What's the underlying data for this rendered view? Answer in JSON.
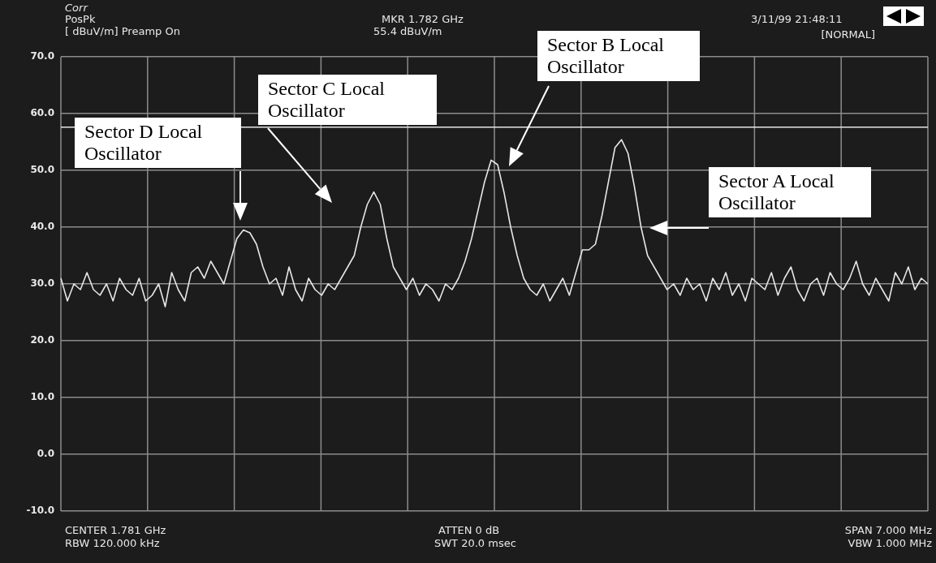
{
  "chart_data": {
    "type": "line",
    "categories": [
      null,
      null,
      null,
      null,
      null,
      null,
      null,
      null,
      null,
      null,
      null,
      null,
      null,
      null,
      null,
      null,
      null,
      null,
      null,
      null,
      null,
      null,
      null,
      null,
      null,
      null,
      null,
      null,
      null,
      null,
      null,
      null,
      null,
      null,
      null,
      null,
      null,
      null,
      null,
      null,
      null,
      null,
      null,
      null,
      null,
      null,
      null,
      null,
      null,
      null,
      null,
      null,
      null,
      null,
      null,
      null,
      null,
      null,
      null,
      null,
      null,
      null,
      null,
      null,
      null,
      null,
      null,
      null,
      null,
      null,
      null,
      null,
      null,
      null,
      null,
      null,
      null,
      null,
      null,
      null,
      null,
      null,
      null,
      null,
      null,
      null,
      null,
      null,
      null,
      null,
      null,
      null,
      null,
      null,
      null,
      null,
      null,
      null,
      null,
      null,
      null,
      null,
      null,
      null,
      null,
      null,
      null,
      null,
      null,
      null,
      null,
      null,
      null,
      null,
      null,
      null,
      null,
      null,
      null,
      null,
      null,
      null,
      null,
      null,
      null,
      null,
      null,
      null,
      null,
      null,
      null,
      null,
      null,
      null
    ],
    "series": [
      {
        "color": "#e6e6e6",
        "values": [
          31,
          27,
          30,
          29,
          32,
          29,
          28,
          30,
          27,
          31,
          29,
          28,
          31,
          27,
          28,
          30,
          26,
          32,
          29,
          27,
          32,
          33,
          31,
          34,
          32,
          30,
          34,
          38,
          39.5,
          39,
          37,
          33,
          30,
          31,
          28,
          33,
          29,
          27,
          31,
          29,
          28,
          30,
          29,
          31,
          33,
          35,
          40,
          44,
          46.2,
          44,
          38,
          33,
          31,
          29,
          31,
          28,
          30,
          29,
          27,
          30,
          29,
          31,
          34,
          38,
          43,
          48,
          51.8,
          51,
          46,
          40,
          35,
          31,
          29,
          28,
          30,
          27,
          29,
          31,
          28,
          32,
          36,
          36,
          37,
          42,
          48,
          54,
          55.4,
          53,
          47,
          40,
          35,
          33,
          31,
          29,
          30,
          28,
          31,
          29,
          30,
          27,
          31,
          29,
          32,
          28,
          30,
          27,
          31,
          30,
          29,
          32,
          28,
          31,
          33,
          29,
          27,
          30,
          31,
          28,
          32,
          30,
          29,
          31,
          34,
          30,
          28,
          31,
          29,
          27,
          32,
          30,
          33,
          29,
          31,
          30
        ]
      }
    ],
    "ylim": [
      -10,
      70
    ],
    "yticks": [
      {
        "value": -10,
        "label": "-10.0"
      },
      {
        "value": 0,
        "label": "0.0"
      },
      {
        "value": 10,
        "label": "10.0"
      },
      {
        "value": 20,
        "label": "20.0"
      },
      {
        "value": 30,
        "label": "30.0"
      },
      {
        "value": 40,
        "label": "40.0"
      },
      {
        "value": 50,
        "label": "50.0"
      },
      {
        "value": 60,
        "label": "60.0"
      },
      {
        "value": 70,
        "label": "70.0"
      }
    ],
    "tick_labels": "y",
    "grid": true,
    "legend": false,
    "marker": "none",
    "line_style": "solid",
    "ref_lines": [
      {
        "axis": "y",
        "value": 57.6,
        "color": "#e6e6e6"
      }
    ],
    "annotations": [
      "Sector D Local Oscillator",
      "Sector C Local Oscillator",
      "Sector B Local Oscillator",
      "Sector A Local Oscillator",
      "Corr",
      "PosPk",
      "[ dBuV/m] Preamp On",
      "MKR 1.782 GHz",
      "55.4 dBuV/m",
      "3/11/99 21:48:11",
      "[NORMAL]",
      "CENTER 1.781 GHz",
      "RBW 120.000 kHz",
      "ATTEN 0 dB",
      "SWT 20.0 msec",
      "SPAN 7.000 MHz",
      "VBW 1.000 MHz"
    ]
  }
}
